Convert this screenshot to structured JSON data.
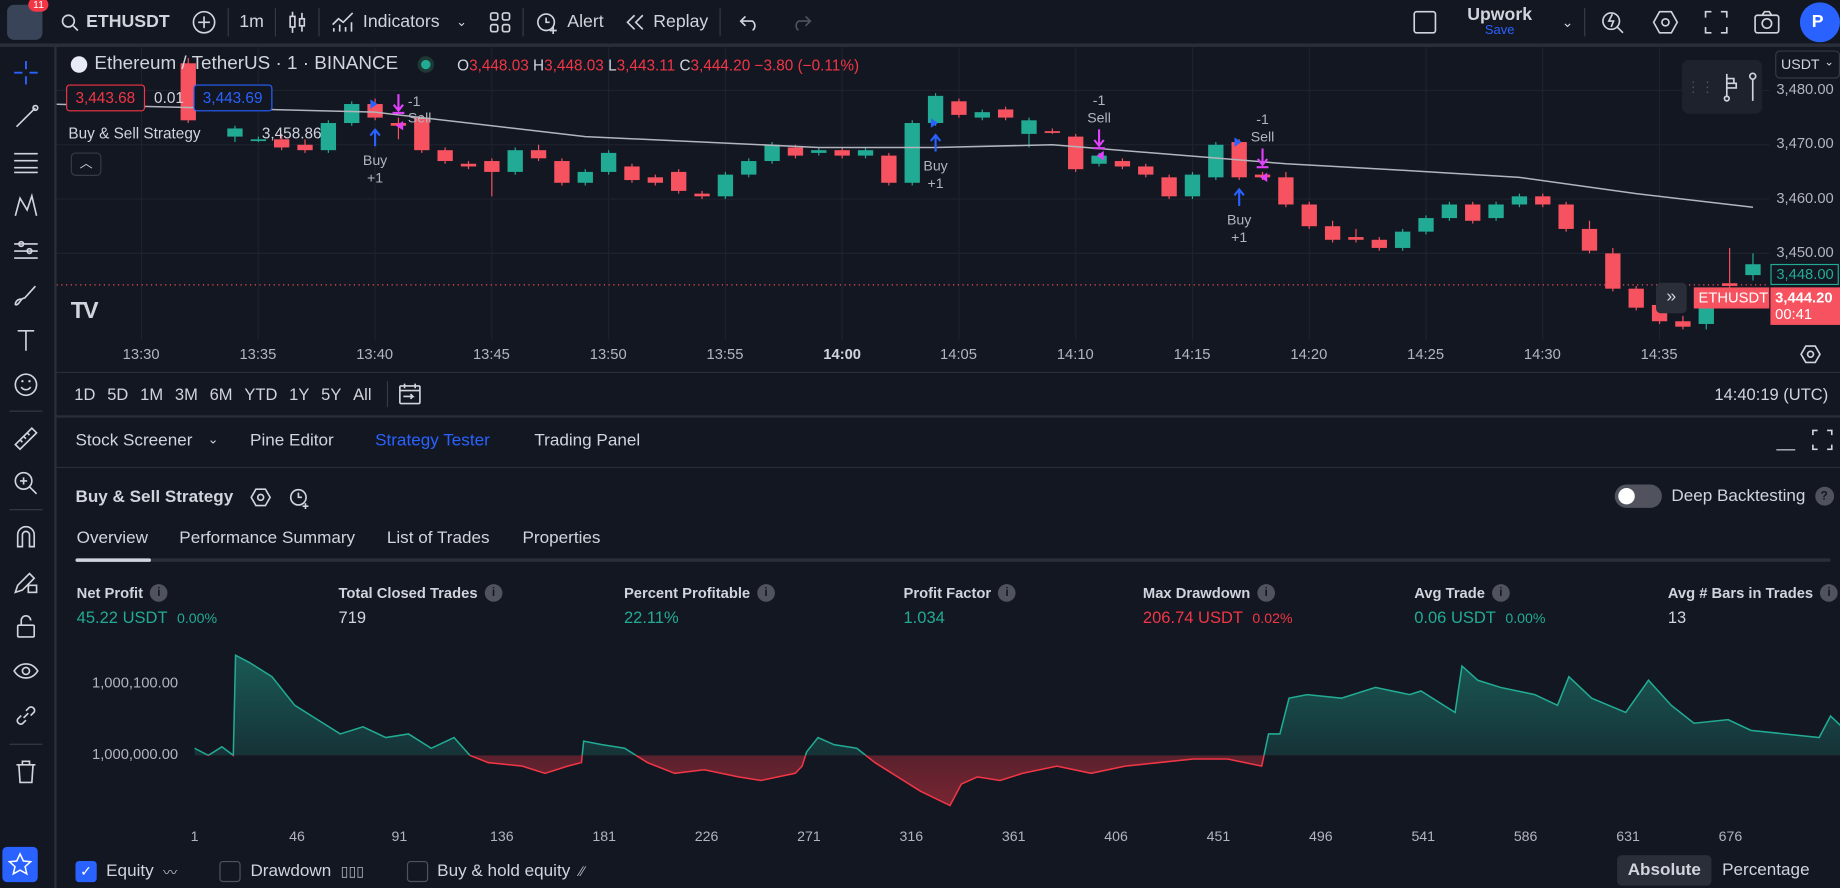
{
  "topbar": {
    "notifications": "11",
    "symbol": "ETHUSDT",
    "interval": "1m",
    "indicators": "Indicators",
    "alert": "Alert",
    "replay": "Replay",
    "layout_name": "Upwork",
    "save": "Save",
    "profile_initial": "P"
  },
  "legend": {
    "title": "Ethereum / TetherUS · 1 · BINANCE",
    "o_label": "O",
    "o": "3,448.03",
    "h_label": "H",
    "h": "3,448.03",
    "l_label": "L",
    "l": "3,443.11",
    "c_label": "C",
    "c": "3,444.20",
    "change": "−3.80 (−0.11%)",
    "sell_price": "3,443.68",
    "spread": "0.01",
    "buy_price": "3,443.69",
    "strategy_name": "Buy & Sell Strategy",
    "strategy_value": "3,458.86"
  },
  "price_axis": {
    "currency": "USDT",
    "ticks": [
      "3,480.00",
      "3,470.00",
      "3,460.00",
      "3,450.00"
    ],
    "tick_values": [
      3480,
      3470,
      3460,
      3450
    ],
    "last_green": "3,448.00",
    "symbol_tag": "ETHUSDT",
    "current": "3,444.20",
    "countdown": "00:41"
  },
  "time_axis": [
    "13:30",
    "13:35",
    "13:40",
    "13:45",
    "13:50",
    "13:55",
    "14:00",
    "14:05",
    "14:10",
    "14:15",
    "14:20",
    "14:25",
    "14:30",
    "14:35"
  ],
  "colors": {
    "up": "#22ab94",
    "down": "#f7525f",
    "accent": "#2962ff",
    "buy": "#2962ff",
    "sell": "#e040fb",
    "ma": "#b2b5be"
  },
  "candles": [
    [
      "13:32",
      3485,
      3486,
      3474,
      3474.5
    ],
    [
      "13:34",
      3471.5,
      3473.5,
      3470.5,
      3473
    ],
    [
      "13:35",
      3471,
      3471.5,
      3470.5,
      3471
    ],
    [
      "13:36",
      3471,
      3472,
      3469,
      3469.5
    ],
    [
      "13:37",
      3470,
      3471,
      3468.5,
      3469
    ],
    [
      "13:38",
      3469,
      3474.5,
      3468.5,
      3474
    ],
    [
      "13:39",
      3474,
      3478,
      3473.5,
      3477.5
    ],
    [
      "13:40",
      3477.5,
      3478.5,
      3474.5,
      3475
    ],
    [
      "13:41",
      3474,
      3475,
      3471,
      3473.5
    ],
    [
      "13:42",
      3475,
      3475.5,
      3468.5,
      3469
    ],
    [
      "13:43",
      3469,
      3469.5,
      3466.5,
      3467
    ],
    [
      "13:44",
      3466.5,
      3467,
      3465.5,
      3466
    ],
    [
      "13:45",
      3467,
      3467.5,
      3460.5,
      3465
    ],
    [
      "13:46",
      3465,
      3469.5,
      3464.5,
      3469
    ],
    [
      "13:47",
      3469,
      3470,
      3467,
      3467.5
    ],
    [
      "13:48",
      3467,
      3467.5,
      3462.5,
      3463
    ],
    [
      "13:49",
      3463,
      3465.5,
      3462.5,
      3465
    ],
    [
      "13:50",
      3465,
      3469,
      3464.5,
      3468.5
    ],
    [
      "13:51",
      3466,
      3466.5,
      3463,
      3463.5
    ],
    [
      "13:52",
      3464,
      3464.5,
      3462.5,
      3463
    ],
    [
      "13:53",
      3465,
      3465.5,
      3461,
      3461.5
    ],
    [
      "13:54",
      3461,
      3461.5,
      3460,
      3460.5
    ],
    [
      "13:55",
      3460.5,
      3465,
      3460,
      3464.5
    ],
    [
      "13:56",
      3464.5,
      3467.5,
      3464,
      3467
    ],
    [
      "13:57",
      3467,
      3470.5,
      3466.5,
      3470
    ],
    [
      "13:58",
      3469.5,
      3470,
      3467.5,
      3468
    ],
    [
      "13:59",
      3468.5,
      3469.5,
      3468,
      3469
    ],
    [
      "14:00",
      3469,
      3469.5,
      3467.5,
      3468
    ],
    [
      "14:01",
      3468,
      3469.5,
      3467.5,
      3469
    ],
    [
      "14:02",
      3468,
      3468.5,
      3462.5,
      3463
    ],
    [
      "14:03",
      3463,
      3474.5,
      3462.5,
      3474
    ],
    [
      "14:04",
      3474,
      3479.5,
      3473.5,
      3479
    ],
    [
      "14:05",
      3478,
      3478.5,
      3475,
      3475.5
    ],
    [
      "14:06",
      3475,
      3476.5,
      3474.5,
      3476
    ],
    [
      "14:07",
      3476.5,
      3477,
      3474.5,
      3475
    ],
    [
      "14:08",
      3472,
      3475,
      3469.5,
      3474.5
    ],
    [
      "14:09",
      3472.5,
      3473,
      3472,
      3472.3
    ],
    [
      "14:10",
      3471.5,
      3472,
      3465,
      3465.5
    ],
    [
      "14:11",
      3466.5,
      3468.5,
      3466,
      3468
    ],
    [
      "14:12",
      3467,
      3467.5,
      3465.5,
      3466
    ],
    [
      "14:13",
      3466,
      3466.5,
      3464,
      3464.5
    ],
    [
      "14:14",
      3464,
      3464.5,
      3460,
      3460.5
    ],
    [
      "14:15",
      3460.5,
      3465,
      3460,
      3464.5
    ],
    [
      "14:16",
      3464,
      3470.5,
      3463.5,
      3470
    ],
    [
      "14:17",
      3470.5,
      3471,
      3463.5,
      3464
    ],
    [
      "14:18",
      3464.5,
      3465,
      3463.5,
      3464
    ],
    [
      "14:19",
      3464,
      3465,
      3458.5,
      3459
    ],
    [
      "14:20",
      3459,
      3459.5,
      3454.5,
      3455
    ],
    [
      "14:21",
      3455,
      3456,
      3452,
      3452.5
    ],
    [
      "14:22",
      3453,
      3454.5,
      3452,
      3452.5
    ],
    [
      "14:23",
      3452.5,
      3453,
      3450.5,
      3451
    ],
    [
      "14:24",
      3451,
      3454.5,
      3450.5,
      3454
    ],
    [
      "14:25",
      3454,
      3457,
      3453.5,
      3456.5
    ],
    [
      "14:26",
      3456.5,
      3459.5,
      3456,
      3459
    ],
    [
      "14:27",
      3459,
      3459.5,
      3455.5,
      3456
    ],
    [
      "14:28",
      3456.5,
      3459.5,
      3456,
      3459
    ],
    [
      "14:29",
      3459,
      3461,
      3458.5,
      3460.5
    ],
    [
      "14:30",
      3460.5,
      3461,
      3458.5,
      3459
    ],
    [
      "14:31",
      3459,
      3459.5,
      3454,
      3454.5
    ],
    [
      "14:32",
      3454.5,
      3456,
      3450,
      3450.5
    ],
    [
      "14:33",
      3450,
      3451,
      3443,
      3443.5
    ],
    [
      "14:34",
      3443.5,
      3444,
      3439.5,
      3440
    ],
    [
      "14:35",
      3440.5,
      3441,
      3437,
      3437.5
    ],
    [
      "14:36",
      3437.5,
      3438.5,
      3436,
      3436.5
    ],
    [
      "14:37",
      3437,
      3441,
      3436,
      3440
    ],
    [
      "14:38",
      3444.5,
      3451,
      3443.5,
      3444
    ],
    [
      "14:39",
      3446,
      3450,
      3445,
      3448
    ]
  ],
  "moving_average": [
    [
      "13:26",
      3477.5
    ],
    [
      "13:40",
      3476
    ],
    [
      "13:49",
      3471.5
    ],
    [
      "13:59",
      3469.5
    ],
    [
      "14:04",
      3469.5
    ],
    [
      "14:09",
      3470
    ],
    [
      "14:19",
      3466.5
    ],
    [
      "14:24",
      3465.3
    ],
    [
      "14:29",
      3464
    ],
    [
      "14:34",
      3461
    ],
    [
      "14:39",
      3458.5
    ]
  ],
  "trades": [
    {
      "type": "buy",
      "time": "13:40",
      "label": "Buy",
      "qty": "+1"
    },
    {
      "type": "sell",
      "time": "13:41",
      "label": "Sell",
      "qty": "-1"
    },
    {
      "type": "buy",
      "time": "14:04",
      "label": "Buy",
      "qty": "+1"
    },
    {
      "type": "sell",
      "time": "14:11",
      "label": "Sell",
      "qty": "-1"
    },
    {
      "type": "buy",
      "time": "14:17",
      "label": "Buy",
      "qty": "+1"
    },
    {
      "type": "sell",
      "time": "14:18",
      "label": "Sell",
      "qty": "-1"
    }
  ],
  "range_bar": {
    "ranges": [
      "1D",
      "5D",
      "1M",
      "3M",
      "6M",
      "YTD",
      "1Y",
      "5Y",
      "All"
    ],
    "clock": "14:40:19 (UTC)"
  },
  "panel": {
    "tabs": [
      "Stock Screener",
      "Pine Editor",
      "Strategy Tester",
      "Trading Panel"
    ],
    "active_tab": "Strategy Tester",
    "strategy": "Buy & Sell Strategy",
    "deep_backtesting": "Deep Backtesting",
    "deep_backtesting_on": false,
    "subtabs": [
      "Overview",
      "Performance Summary",
      "List of Trades",
      "Properties"
    ],
    "active_subtab": "Overview"
  },
  "metrics": [
    {
      "label": "Net Profit",
      "value": "45.22 USDT",
      "pct": "0.00%",
      "color": "green"
    },
    {
      "label": "Total Closed Trades",
      "value": "719",
      "pct": "",
      "color": "white"
    },
    {
      "label": "Percent Profitable",
      "value": "22.11%",
      "pct": "",
      "color": "green"
    },
    {
      "label": "Profit Factor",
      "value": "1.034",
      "pct": "",
      "color": "green"
    },
    {
      "label": "Max Drawdown",
      "value": "206.74 USDT",
      "pct": "0.02%",
      "color": "red"
    },
    {
      "label": "Avg Trade",
      "value": "0.06 USDT",
      "pct": "0.00%",
      "color": "green"
    },
    {
      "label": "Avg # Bars in Trades",
      "value": "13",
      "pct": "",
      "color": "white"
    }
  ],
  "chart_data": {
    "type": "area",
    "baseline": 1000000,
    "y_ticks": [
      "1,000,100.00",
      "1,000,000.00"
    ],
    "y_tick_values": [
      1000100,
      1000000
    ],
    "x_ticks": [
      "1",
      "46",
      "91",
      "136",
      "181",
      "226",
      "271",
      "316",
      "361",
      "406",
      "451",
      "496",
      "541",
      "586",
      "631",
      "676"
    ],
    "series": [
      {
        "name": "Equity",
        "points": [
          [
            1,
            1000010
          ],
          [
            7,
            1000000
          ],
          [
            13,
            1000012
          ],
          [
            18,
            1000000
          ],
          [
            19,
            1000140
          ],
          [
            25,
            1000130
          ],
          [
            35,
            1000110
          ],
          [
            45,
            1000070
          ],
          [
            55,
            1000050
          ],
          [
            65,
            1000030
          ],
          [
            75,
            1000040
          ],
          [
            85,
            1000025
          ],
          [
            95,
            1000030
          ],
          [
            105,
            1000010
          ],
          [
            115,
            1000025
          ],
          [
            122,
            1000000
          ],
          [
            130,
            999990
          ],
          [
            145,
            999985
          ],
          [
            155,
            999975
          ],
          [
            165,
            999985
          ],
          [
            171,
            999990
          ],
          [
            172,
            1000020
          ],
          [
            180,
            1000015
          ],
          [
            190,
            1000010
          ],
          [
            200,
            999990
          ],
          [
            212,
            999975
          ],
          [
            225,
            999980
          ],
          [
            240,
            999970
          ],
          [
            250,
            999965
          ],
          [
            265,
            999975
          ],
          [
            268,
            999985
          ],
          [
            270,
            1000005
          ],
          [
            275,
            1000025
          ],
          [
            282,
            1000015
          ],
          [
            292,
            1000010
          ],
          [
            300,
            999990
          ],
          [
            310,
            999970
          ],
          [
            320,
            999950
          ],
          [
            333,
            999930
          ],
          [
            338,
            999960
          ],
          [
            345,
            999970
          ],
          [
            355,
            999965
          ],
          [
            365,
            999975
          ],
          [
            380,
            999985
          ],
          [
            395,
            999975
          ],
          [
            410,
            999985
          ],
          [
            425,
            999990
          ],
          [
            440,
            999995
          ],
          [
            455,
            999995
          ],
          [
            470,
            999985
          ],
          [
            473,
            1000030
          ],
          [
            478,
            1000030
          ],
          [
            482,
            1000080
          ],
          [
            490,
            1000085
          ],
          [
            505,
            1000080
          ],
          [
            520,
            1000095
          ],
          [
            535,
            1000085
          ],
          [
            540,
            1000090
          ],
          [
            555,
            1000060
          ],
          [
            558,
            1000125
          ],
          [
            565,
            1000105
          ],
          [
            575,
            1000095
          ],
          [
            590,
            1000085
          ],
          [
            600,
            1000070
          ],
          [
            605,
            1000110
          ],
          [
            615,
            1000080
          ],
          [
            630,
            1000060
          ],
          [
            640,
            1000105
          ],
          [
            650,
            1000070
          ],
          [
            660,
            1000045
          ],
          [
            675,
            1000050
          ],
          [
            685,
            1000035
          ],
          [
            700,
            1000030
          ],
          [
            715,
            1000025
          ],
          [
            720,
            1000055
          ],
          [
            725,
            1000040
          ]
        ]
      }
    ]
  },
  "legend_toggles": [
    {
      "label": "Equity",
      "checked": true
    },
    {
      "label": "Drawdown",
      "checked": false
    },
    {
      "label": "Buy & hold equity",
      "checked": false
    }
  ],
  "scale_modes": [
    "Absolute",
    "Percentage"
  ],
  "active_scale": "Absolute"
}
